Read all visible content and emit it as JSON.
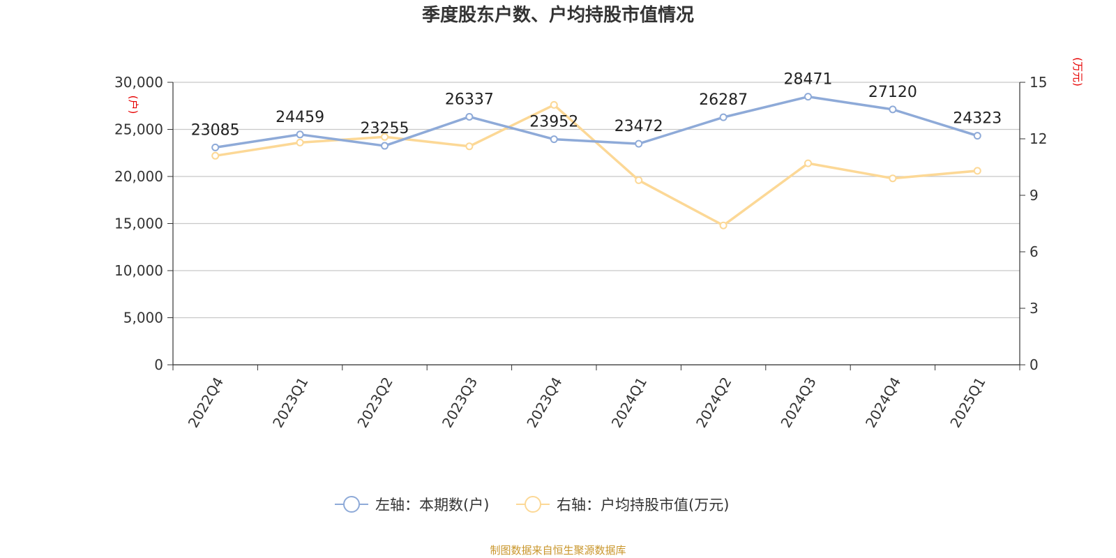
{
  "chart_data": {
    "type": "line",
    "title": "季度股东户数、户均持股市值情况",
    "categories": [
      "2022Q4",
      "2023Q1",
      "2023Q2",
      "2023Q3",
      "2023Q4",
      "2024Q1",
      "2024Q2",
      "2024Q3",
      "2024Q4",
      "2025Q1"
    ],
    "left_axis": {
      "unit": "(户)",
      "ylim": [
        0,
        30000
      ],
      "ticks": [
        "0",
        "5,000",
        "10,000",
        "15,000",
        "20,000",
        "25,000",
        "30,000"
      ]
    },
    "right_axis": {
      "unit": "(万元)",
      "ylim": [
        0,
        15
      ],
      "ticks": [
        "0",
        "3",
        "6",
        "9",
        "12",
        "15"
      ]
    },
    "series": [
      {
        "name": "左轴：本期数(户)",
        "axis": "left",
        "color": "#8eaad8",
        "values": [
          23085,
          24459,
          23255,
          26337,
          23952,
          23472,
          26287,
          28471,
          27120,
          24323
        ],
        "labels": [
          "23085",
          "24459",
          "23255",
          "26337",
          "23952",
          "23472",
          "26287",
          "28471",
          "27120",
          "24323"
        ]
      },
      {
        "name": "右轴：户均持股市值(万元)",
        "axis": "right",
        "color": "#fcd896",
        "values": [
          11.1,
          11.8,
          12.1,
          11.6,
          13.8,
          9.8,
          7.4,
          10.7,
          9.9,
          10.3
        ]
      }
    ],
    "grid": true,
    "legend": "bottom-center"
  },
  "source": "制图数据来自恒生聚源数据库"
}
